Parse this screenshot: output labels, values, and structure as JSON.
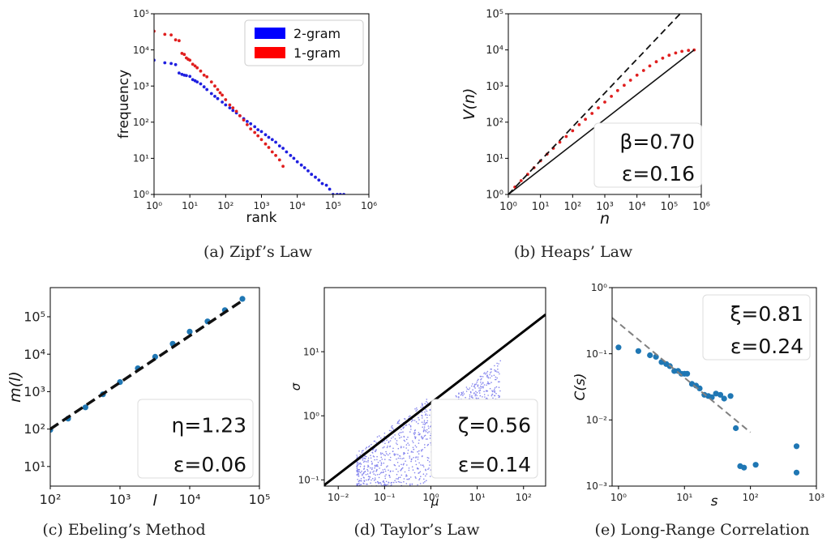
{
  "chart_data": [
    {
      "id": "a",
      "type": "scatter",
      "caption": "(a)  Zipf’s Law",
      "xlabel": "rank",
      "ylabel": "frequency",
      "xscale": "log",
      "yscale": "log",
      "xlim": [
        1,
        1000000
      ],
      "ylim": [
        1,
        100000
      ],
      "xticks": [
        "10⁰",
        "10¹",
        "10²",
        "10³",
        "10⁴",
        "10⁵",
        "10⁶"
      ],
      "yticks": [
        "10⁰",
        "10¹",
        "10²",
        "10³",
        "10⁴",
        "10⁵"
      ],
      "legend": {
        "placement": "top-right",
        "entries": [
          {
            "label": "2-gram",
            "color": "#0000ff"
          },
          {
            "label": "1-gram",
            "color": "#ff0000"
          }
        ]
      },
      "series": [
        {
          "name": "2-gram",
          "color": "#1f1fe0",
          "x": [
            1,
            2,
            3,
            4,
            5,
            6,
            7,
            8,
            10,
            12,
            14,
            16,
            20,
            25,
            30,
            40,
            50,
            60,
            80,
            100,
            130,
            160,
            200,
            250,
            320,
            400,
            500,
            650,
            800,
            1000,
            1300,
            1600,
            2000,
            2500,
            3200,
            4000,
            5000,
            6500,
            8000,
            10000,
            13000,
            16000,
            20000,
            25000,
            32000,
            40000,
            50000,
            65000,
            80000,
            100000,
            130000,
            160000,
            200000
          ],
          "y": [
            5200,
            4400,
            4200,
            3900,
            2300,
            2100,
            2000,
            1950,
            1850,
            1500,
            1400,
            1300,
            1150,
            950,
            800,
            620,
            520,
            450,
            360,
            300,
            250,
            210,
            180,
            150,
            125,
            105,
            90,
            75,
            62,
            55,
            45,
            38,
            33,
            28,
            22,
            19,
            15,
            12,
            10,
            8,
            6.5,
            5.5,
            4.5,
            3.6,
            3,
            2.5,
            2,
            1.8,
            1.4,
            1,
            1,
            1,
            1
          ]
        },
        {
          "name": "1-gram",
          "color": "#e01f1f",
          "x": [
            1,
            2,
            3,
            4,
            5,
            6,
            7,
            8,
            9,
            10,
            12,
            14,
            16,
            20,
            25,
            30,
            40,
            50,
            60,
            70,
            80,
            100,
            130,
            160,
            200,
            250,
            320,
            400,
            500,
            650,
            800,
            1000,
            1300,
            1600,
            2000,
            2500,
            3200,
            4000
          ],
          "y": [
            33000,
            27000,
            26000,
            19000,
            18000,
            8000,
            7500,
            6000,
            5500,
            5200,
            4000,
            3600,
            3200,
            2600,
            2000,
            1800,
            1300,
            1000,
            800,
            650,
            560,
            420,
            300,
            250,
            200,
            150,
            115,
            85,
            65,
            52,
            42,
            33,
            25,
            20,
            15,
            12,
            9,
            6
          ]
        }
      ]
    },
    {
      "id": "b",
      "type": "line",
      "caption": "(b)  Heaps’ Law",
      "xlabel": "n",
      "ylabel": "V(n)",
      "xscale": "log",
      "yscale": "log",
      "xlim": [
        1,
        1000000
      ],
      "ylim": [
        1,
        100000
      ],
      "xticks": [
        "10⁰",
        "10¹",
        "10²",
        "10³",
        "10⁴",
        "10⁵",
        "10⁶"
      ],
      "yticks": [
        "10⁰",
        "10¹",
        "10²",
        "10³",
        "10⁴",
        "10⁵"
      ],
      "annotation": [
        "β=0.70",
        "ε=0.16"
      ],
      "series": [
        {
          "name": "",
          "style": "scatter",
          "color": "#e01f1f",
          "x": [
            1,
            1.6,
            2.5,
            4,
            6.3,
            10,
            16,
            25,
            40,
            63,
            100,
            160,
            250,
            400,
            630,
            1000,
            1600,
            2500,
            4000,
            6300,
            10000,
            16000,
            25000,
            40000,
            63000,
            100000,
            160000,
            250000,
            400000,
            600000
          ],
          "y": [
            1,
            1.6,
            2.4,
            3.6,
            5.5,
            8.5,
            13,
            19,
            28,
            40,
            58,
            85,
            120,
            175,
            250,
            360,
            520,
            750,
            1050,
            1450,
            2000,
            2700,
            3600,
            4700,
            5900,
            7100,
            8200,
            9100,
            9700,
            10000
          ]
        },
        {
          "name": "",
          "style": "dashed",
          "color": "#111111",
          "x": [
            1,
            220000
          ],
          "y": [
            1,
            100000
          ]
        },
        {
          "name": "",
          "style": "solid",
          "color": "#111111",
          "x": [
            1,
            600000
          ],
          "y": [
            1,
            10000
          ]
        }
      ]
    },
    {
      "id": "c",
      "type": "scatter",
      "caption": "(c)  Ebeling’s Method",
      "xlabel": "l",
      "ylabel": "m(l)",
      "xscale": "log",
      "yscale": "log",
      "xlim": [
        100,
        100000
      ],
      "ylim": [
        3,
        600000
      ],
      "xticks": [
        "10²",
        "10³",
        "10⁴",
        "10⁵"
      ],
      "yticks": [
        "10¹",
        "10²",
        "10³",
        "10⁴",
        "10⁵"
      ],
      "annotation": [
        "η=1.23",
        "ε=0.06"
      ],
      "series": [
        {
          "name": "",
          "style": "scatter",
          "color": "#1f77b4",
          "x": [
            100,
            180,
            320,
            570,
            1000,
            1800,
            3200,
            5700,
            10000,
            18000,
            32000,
            57000
          ],
          "y": [
            95,
            190,
            380,
            850,
            1800,
            4200,
            8500,
            19000,
            40000,
            75000,
            150000,
            300000
          ]
        },
        {
          "name": "",
          "style": "dashed",
          "color": "#111111",
          "x": [
            100,
            57000
          ],
          "y": [
            100,
            270000
          ]
        }
      ]
    },
    {
      "id": "d",
      "type": "scatter",
      "caption": "(d)  Taylor’s Law",
      "xlabel": "μ",
      "ylabel": "σ",
      "xscale": "log",
      "yscale": "log",
      "xlim": [
        0.005,
        300
      ],
      "ylim": [
        0.08,
        100
      ],
      "xticks": [
        "10⁻²",
        "10⁻¹",
        "10⁰",
        "10¹",
        "10²"
      ],
      "yticks": [
        "10⁻¹",
        "10⁰",
        "10¹"
      ],
      "annotation": [
        "ζ=0.56",
        "ε=0.14"
      ],
      "series": [
        {
          "name": "",
          "style": "cloud",
          "color": "#1f1fe0"
        },
        {
          "name": "",
          "style": "solid",
          "color": "#000000",
          "x": [
            0.005,
            300
          ],
          "y": [
            0.083,
            38
          ]
        }
      ]
    },
    {
      "id": "e",
      "type": "scatter",
      "caption": "(e)  Long-Range Correlation",
      "xlabel": "s",
      "ylabel": "C(s)",
      "xscale": "log",
      "yscale": "log",
      "xlim": [
        0.8,
        1000
      ],
      "ylim": [
        0.001,
        1
      ],
      "xticks": [
        "10⁰",
        "10¹",
        "10²",
        "10³"
      ],
      "yticks": [
        "10⁻³",
        "10⁻²",
        "10⁻¹",
        "10⁰"
      ],
      "annotation": [
        "ξ=0.81",
        "ε=0.24"
      ],
      "series": [
        {
          "name": "",
          "style": "scatter",
          "color": "#1f77b4",
          "x": [
            1,
            2,
            3,
            3.7,
            4.5,
            5.3,
            6,
            7,
            8,
            9,
            10,
            11,
            13,
            15,
            17,
            20,
            23,
            26,
            30,
            35,
            40,
            50,
            60,
            70,
            80,
            120,
            500,
            500
          ],
          "y": [
            0.125,
            0.11,
            0.095,
            0.09,
            0.075,
            0.07,
            0.065,
            0.055,
            0.055,
            0.05,
            0.05,
            0.05,
            0.035,
            0.033,
            0.03,
            0.024,
            0.023,
            0.022,
            0.025,
            0.024,
            0.021,
            0.023,
            0.0075,
            0.002,
            0.0019,
            0.0021,
            0.004,
            0.0016
          ]
        },
        {
          "name": "",
          "style": "dashed",
          "color": "#808080",
          "x": [
            0.8,
            100
          ],
          "y": [
            0.35,
            0.0065
          ]
        }
      ]
    }
  ]
}
